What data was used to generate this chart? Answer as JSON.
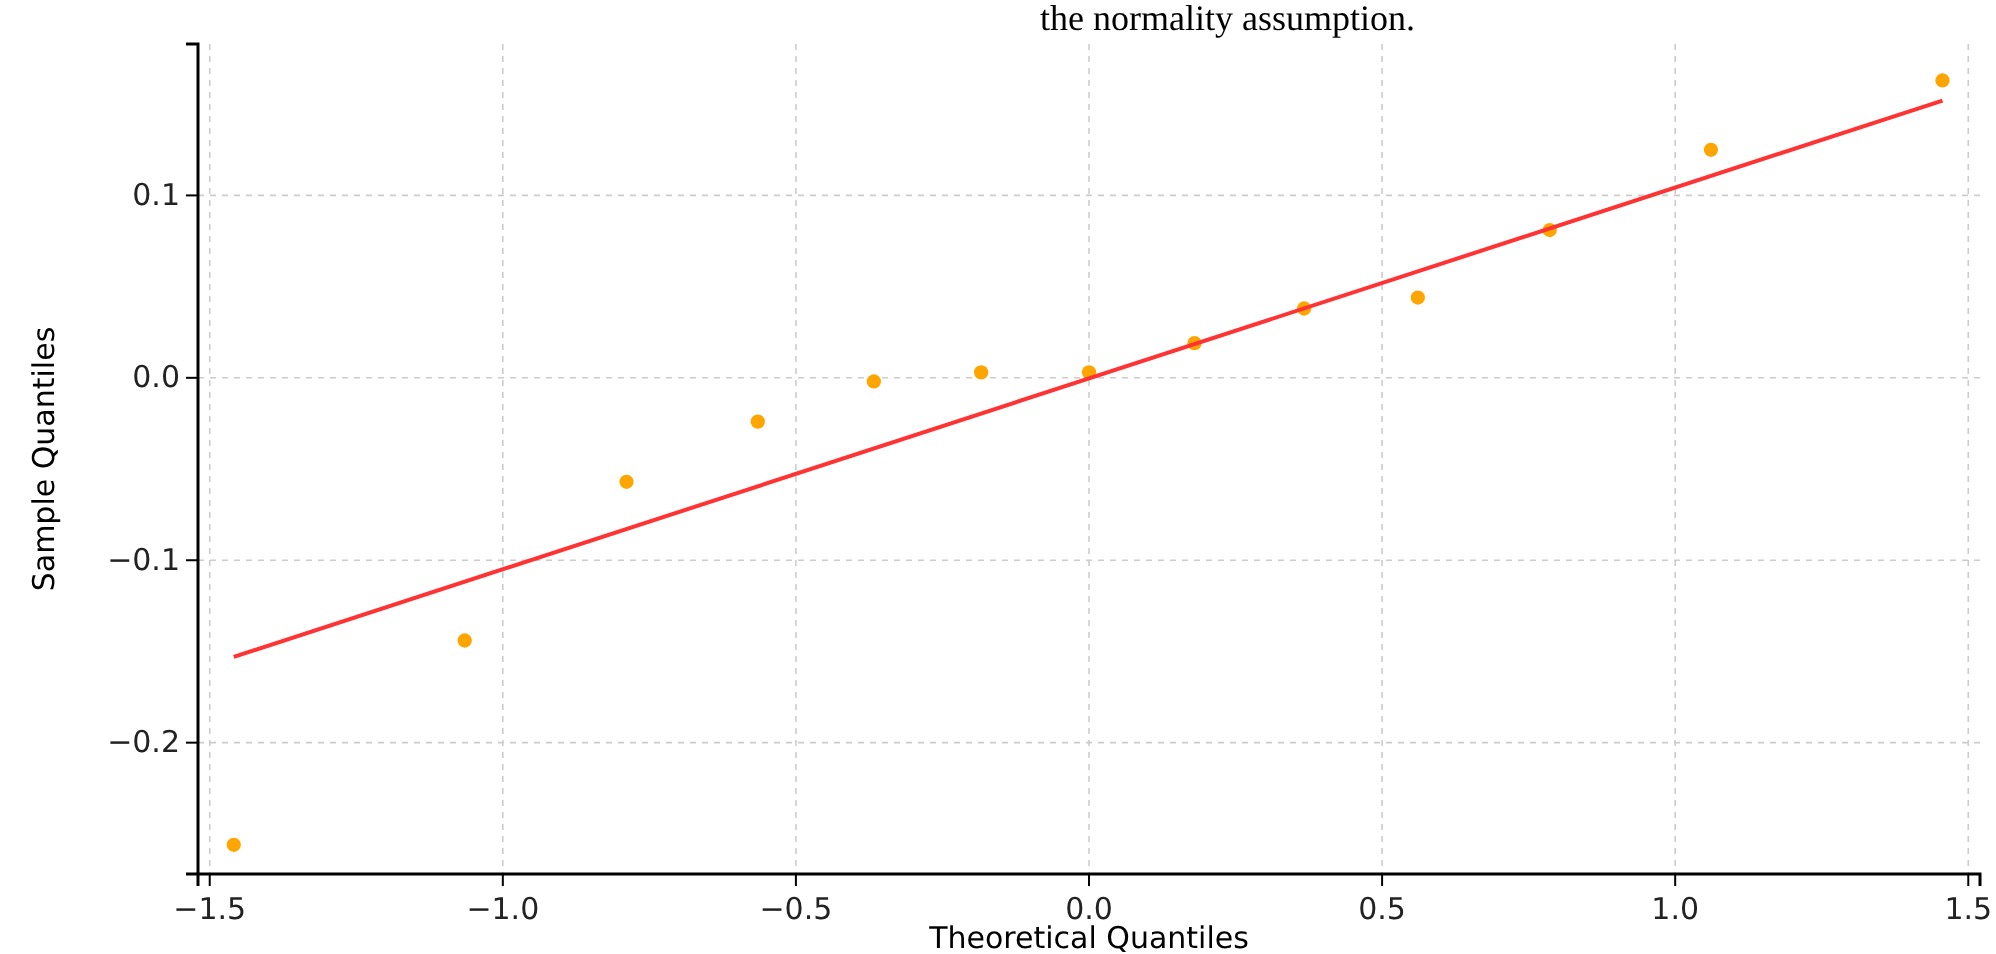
{
  "chart_data": {
    "type": "scatter",
    "xlabel": "Theoretical Quantiles",
    "ylabel": "Sample Quantiles",
    "annotations": [
      "the normality assumption."
    ],
    "xlim": [
      -1.52,
      1.52
    ],
    "xticks": [
      {
        "value": -1.5,
        "label": "−1.5"
      },
      {
        "value": -1.0,
        "label": "−1.0"
      },
      {
        "value": -0.5,
        "label": "−0.5"
      },
      {
        "value": 0,
        "label": "0.0"
      },
      {
        "value": 0.5,
        "label": "0.5"
      },
      {
        "value": 1.0,
        "label": "1.0"
      },
      {
        "value": 1.5,
        "label": "1.5"
      }
    ],
    "ylim": [
      -0.272,
      0.183
    ],
    "yticks": [
      {
        "value": -0.2,
        "label": "−0.2"
      },
      {
        "value": -0.1,
        "label": "−0.1"
      },
      {
        "value": 0,
        "label": "0.0"
      },
      {
        "value": 0.1,
        "label": "0.1"
      }
    ],
    "grid": true,
    "series": [
      {
        "marker": "circle",
        "color": "#ffa500",
        "x": [
          -1.459,
          -1.065,
          -0.789,
          -0.565,
          -0.367,
          -0.184,
          0,
          0.18,
          0.367,
          0.561,
          0.786,
          1.061,
          1.456
        ],
        "values": [
          -0.256,
          -0.144,
          -0.057,
          -0.024,
          -0.002,
          0.003,
          0.003,
          0.019,
          0.038,
          0.044,
          0.081,
          0.125,
          0.163
        ]
      },
      {
        "type": "line",
        "color": "#ff3333",
        "line_style": "solid",
        "x": [
          -1.459,
          1.456
        ],
        "values": [
          -0.153,
          0.152
        ]
      }
    ]
  }
}
